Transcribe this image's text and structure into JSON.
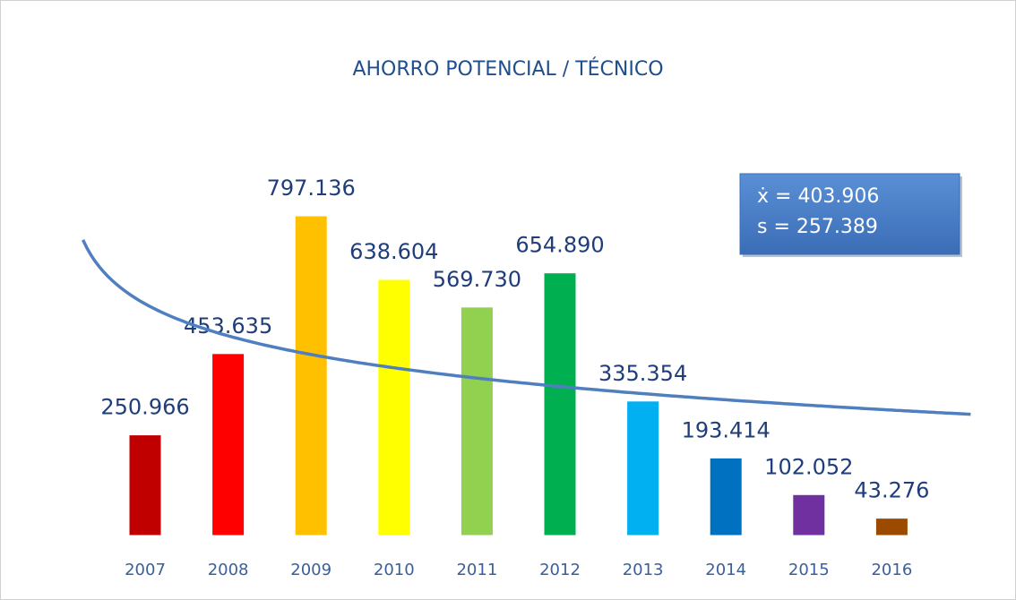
{
  "chart_data": {
    "type": "bar",
    "title": "AHORRO POTENCIAL / TÉCNICO",
    "categories": [
      "2007",
      "2008",
      "2009",
      "2010",
      "2011",
      "2012",
      "2013",
      "2014",
      "2015",
      "2016"
    ],
    "values": [
      250966,
      453635,
      797136,
      638604,
      569730,
      654890,
      335354,
      193414,
      102052,
      43276
    ],
    "value_labels": [
      "250.966",
      "453.635",
      "797.136",
      "638.604",
      "569.730",
      "654.890",
      "335.354",
      "193.414",
      "102.052",
      "43.276"
    ],
    "colors": [
      "#c00000",
      "#ff0000",
      "#ffc000",
      "#ffff00",
      "#92d050",
      "#00b050",
      "#00b0f0",
      "#0070c0",
      "#7030a0",
      "#9c4a00"
    ],
    "trendline": {
      "type": "logarithmic",
      "color": "#4f7fbf"
    },
    "annotations": [
      "ẋ = 403.906",
      "s = 257.389"
    ]
  }
}
